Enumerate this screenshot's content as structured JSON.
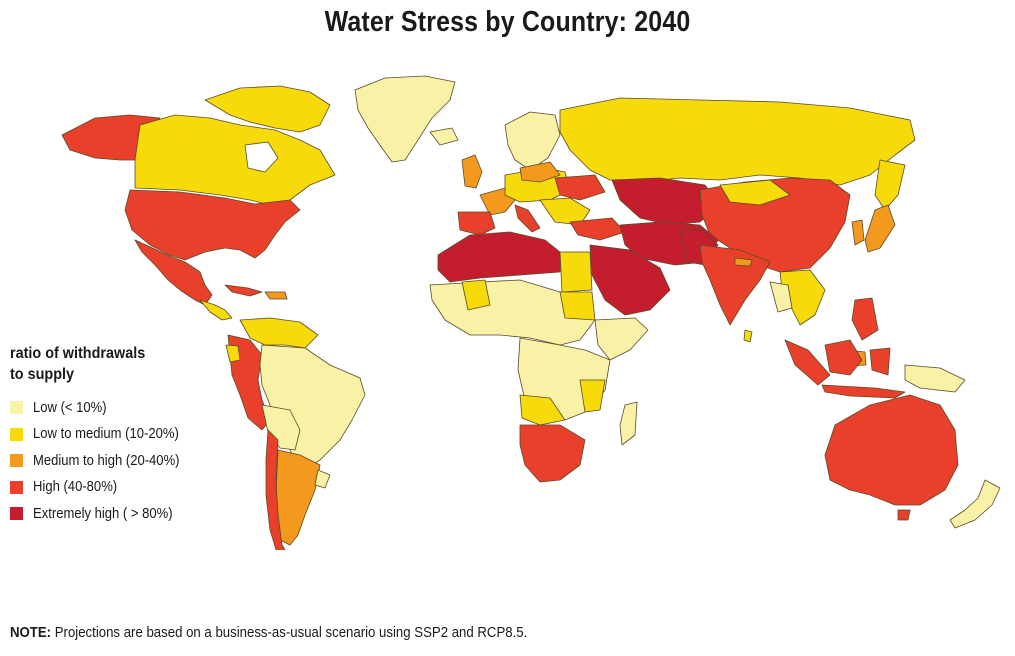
{
  "title": "Water Stress by Country: 2040",
  "legend": {
    "title_line1": "ratio of withdrawals",
    "title_line2": "to supply",
    "items": [
      {
        "label": "Low (< 10%)",
        "color": "#F8F1A6"
      },
      {
        "label": "Low to medium (10-20%)",
        "color": "#F6DA0A"
      },
      {
        "label": "Medium to high  (20-40%)",
        "color": "#F39A1E"
      },
      {
        "label": "High (40-80%)",
        "color": "#E8402A"
      },
      {
        "label": "Extremely high ( > 80%)",
        "color": "#C41E2E"
      }
    ]
  },
  "note": {
    "label": "NOTE:",
    "text": " Projections are based on a business-as-usual scenario using SSP2 and RCP8.5."
  }
}
